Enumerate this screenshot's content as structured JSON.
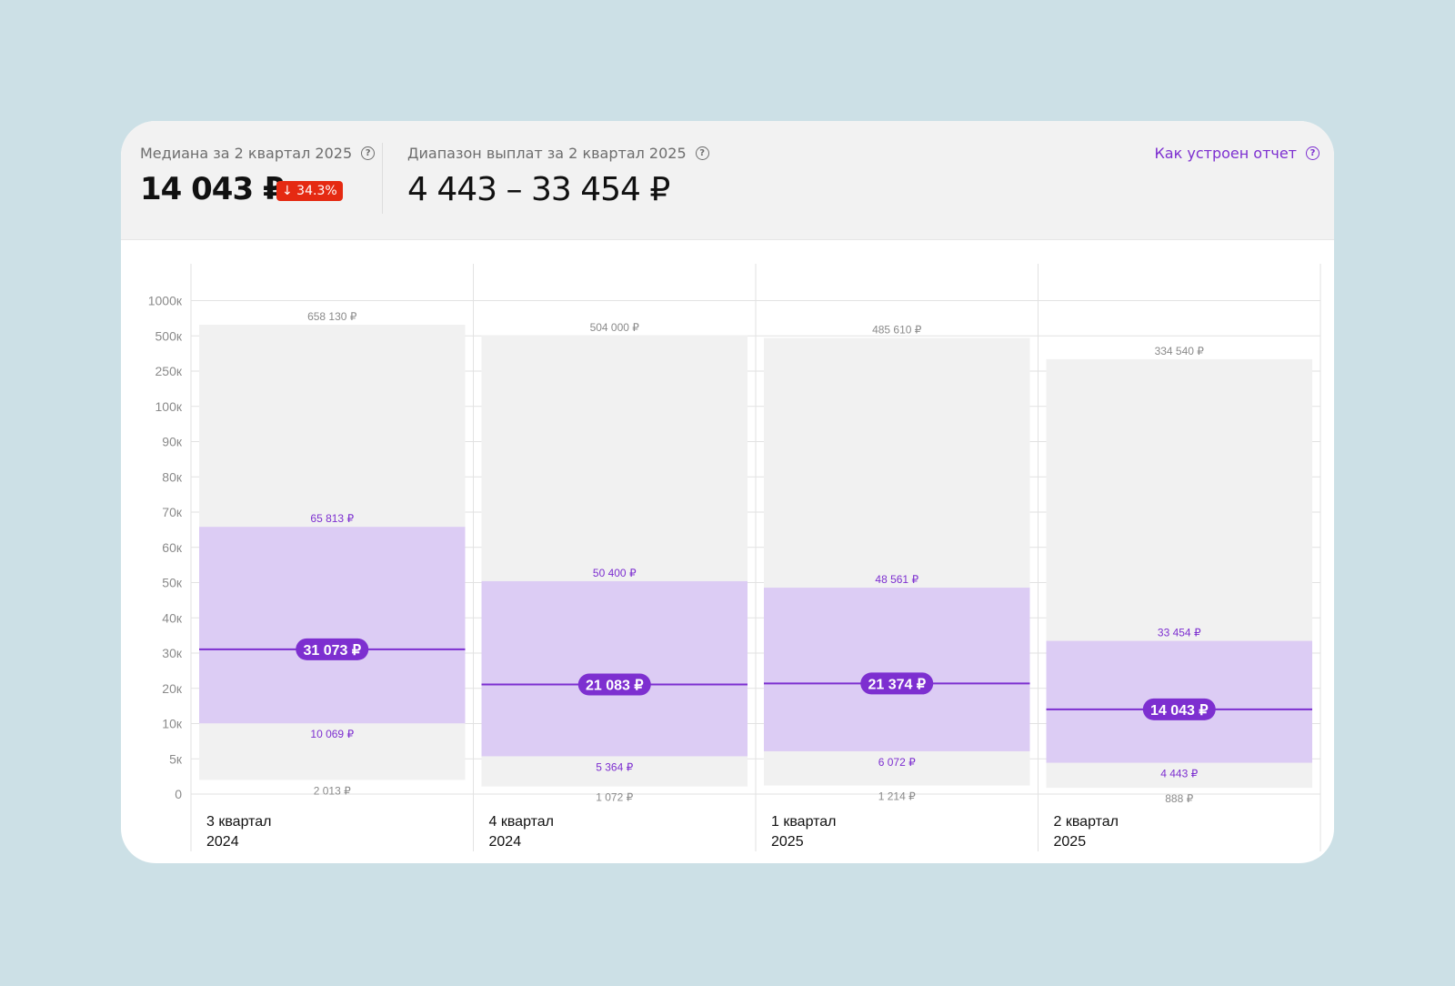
{
  "header": {
    "median_label": "Медиана за 2 квартал 2025",
    "median_value": "14 043 ₽",
    "median_change": "↓ 34.3%",
    "range_label": "Диапазон выплат за 2 квартал 2025",
    "range_value": "4 443 – 33 454 ₽",
    "help_link": "Как устроен отчет"
  },
  "colors": {
    "accent": "#7d2fd0",
    "iqr_fill": "#dcccf4",
    "range_fill": "#f1f1f1",
    "negative": "#e52a12"
  },
  "chart_data": {
    "type": "box-range",
    "y_ticks": [
      "0",
      "5к",
      "10к",
      "20к",
      "30к",
      "40к",
      "50к",
      "60к",
      "70к",
      "80к",
      "90к",
      "100к",
      "250к",
      "500к",
      "1000к"
    ],
    "y_tick_values": [
      0,
      5000,
      10000,
      20000,
      30000,
      40000,
      50000,
      60000,
      70000,
      80000,
      90000,
      100000,
      250000,
      500000,
      1000000
    ],
    "categories": [
      [
        "3 квартал",
        "2024"
      ],
      [
        "4 квартал",
        "2024"
      ],
      [
        "1 квартал",
        "2025"
      ],
      [
        "2 квартал",
        "2025"
      ]
    ],
    "series": [
      {
        "min": 2013,
        "q1": 10069,
        "median": 31073,
        "q3": 65813,
        "max": 658130,
        "labels": {
          "min": "2 013 ₽",
          "q1": "10 069 ₽",
          "median": "31 073 ₽",
          "q3": "65 813 ₽",
          "max": "658 130 ₽"
        }
      },
      {
        "min": 1072,
        "q1": 5364,
        "median": 21083,
        "q3": 50400,
        "max": 504000,
        "labels": {
          "min": "1 072 ₽",
          "q1": "5 364 ₽",
          "median": "21 083 ₽",
          "q3": "50 400 ₽",
          "max": "504 000 ₽"
        }
      },
      {
        "min": 1214,
        "q1": 6072,
        "median": 21374,
        "q3": 48561,
        "max": 485610,
        "labels": {
          "min": "1 214 ₽",
          "q1": "6 072 ₽",
          "median": "21 374 ₽",
          "q3": "48 561 ₽",
          "max": "485 610 ₽"
        }
      },
      {
        "min": 888,
        "q1": 4443,
        "median": 14043,
        "q3": 33454,
        "max": 334540,
        "labels": {
          "min": "888 ₽",
          "q1": "4 443 ₽",
          "median": "14 043 ₽",
          "q3": "33 454 ₽",
          "max": "334 540 ₽"
        }
      }
    ]
  }
}
